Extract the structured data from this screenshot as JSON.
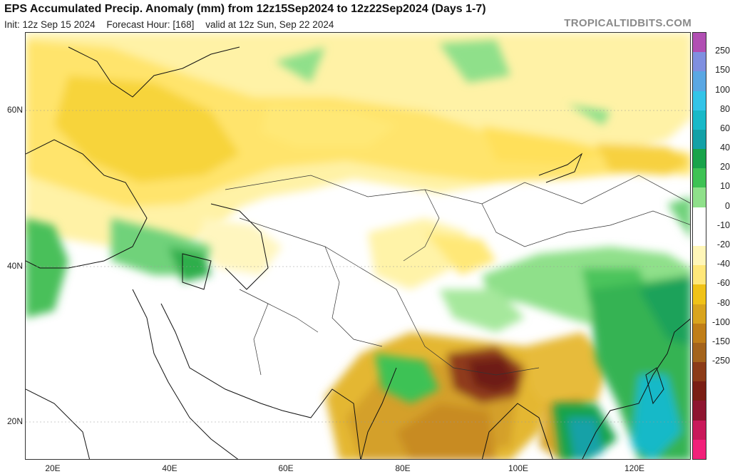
{
  "header": {
    "title": "EPS Accumulated Precip. Anomaly (mm) from 12z15Sep2024 to 12z22Sep2024 (Days 1-7)",
    "init": "Init: 12z Sep 15 2024",
    "forecast_hour": "Forecast Hour: [168]",
    "valid": "valid at 12z Sun, Sep 22 2024",
    "brand": "TROPICALTIDBITS.COM"
  },
  "axes": {
    "lat_labels": [
      "60N",
      "40N",
      "20N"
    ],
    "lon_labels": [
      "20E",
      "40E",
      "60E",
      "80E",
      "100E",
      "120E"
    ]
  },
  "colorbar": {
    "labels": [
      "250",
      "150",
      "100",
      "80",
      "60",
      "40",
      "20",
      "10",
      "0",
      "-10",
      "-20",
      "-40",
      "-60",
      "-80",
      "-100",
      "-150",
      "-250"
    ],
    "colors": [
      "#b14fb3",
      "#7f8fe0",
      "#5aa7e3",
      "#33c4e8",
      "#18b9c8",
      "#13a1a7",
      "#18a34a",
      "#3ec254",
      "#8fe08a",
      "#ffffff",
      "#ffffff",
      "#fff6b8",
      "#ffe77a",
      "#f0c218",
      "#d9a41e",
      "#c07e18",
      "#a4631b",
      "#8c3b18",
      "#7a1e14",
      "#8e1530",
      "#c9185a",
      "#f2207a"
    ]
  }
}
